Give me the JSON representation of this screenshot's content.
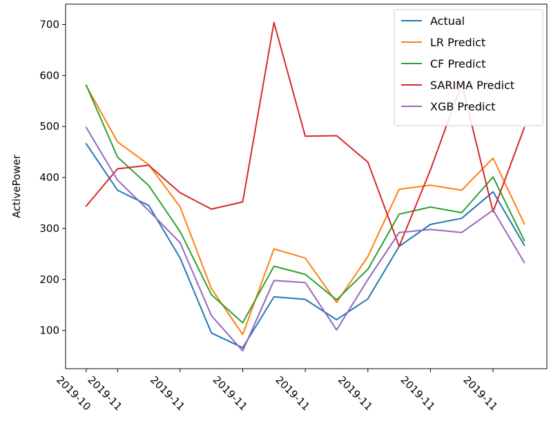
{
  "chart_data": {
    "type": "line",
    "ylabel": "ActivePower",
    "ylim": [
      25,
      740
    ],
    "yticks": [
      100,
      200,
      300,
      400,
      500,
      600,
      700
    ],
    "x": [
      0,
      1,
      2,
      3,
      4,
      5,
      6,
      7,
      8,
      9,
      10,
      11,
      12,
      13,
      14
    ],
    "xlim": [
      -0.66,
      14.72
    ],
    "xticks": [
      {
        "at": 0,
        "label": "2019-10"
      },
      {
        "at": 1,
        "label": "2019-11"
      },
      {
        "at": 3,
        "label": "2019-11"
      },
      {
        "at": 5,
        "label": "2019-11"
      },
      {
        "at": 7,
        "label": "2019-11"
      },
      {
        "at": 9,
        "label": "2019-11"
      },
      {
        "at": 11,
        "label": "2019-11"
      },
      {
        "at": 13,
        "label": "2019-11"
      }
    ],
    "legend_position": "top-right",
    "series": [
      {
        "name": "Actual",
        "color": "#1f77b4",
        "values": [
          466,
          375,
          345,
          242,
          95,
          66,
          166,
          161,
          121,
          162,
          265,
          308,
          320,
          372,
          267
        ]
      },
      {
        "name": "LR Predict",
        "color": "#ff7f0e",
        "values": [
          580,
          470,
          425,
          342,
          182,
          92,
          260,
          242,
          155,
          245,
          377,
          385,
          375,
          438,
          309
        ]
      },
      {
        "name": "CF Predict",
        "color": "#2ca02c",
        "values": [
          581,
          440,
          384,
          294,
          170,
          115,
          226,
          210,
          160,
          220,
          328,
          342,
          331,
          401,
          276
        ]
      },
      {
        "name": "SARIMA Predict",
        "color": "#d62728",
        "values": [
          344,
          417,
          424,
          370,
          338,
          352,
          704,
          481,
          482,
          430,
          265,
          415,
          584,
          333,
          498
        ]
      },
      {
        "name": "XGB Predict",
        "color": "#9467bd",
        "values": [
          498,
          395,
          335,
          272,
          129,
          60,
          198,
          194,
          101,
          200,
          292,
          298,
          292,
          336,
          233
        ]
      }
    ]
  }
}
